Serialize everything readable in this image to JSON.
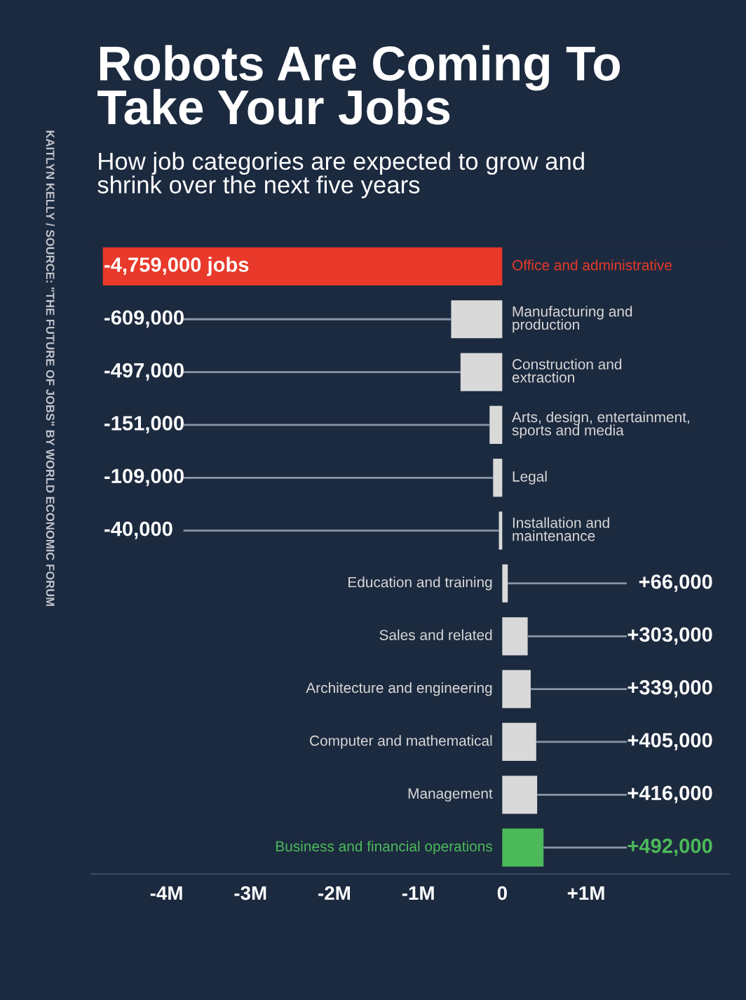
{
  "chart_data": {
    "type": "bar",
    "orientation": "horizontal",
    "title": "Robots Are Coming To\nTake Your Jobs",
    "subtitle": "How job categories are expected to grow and\nshrink over the next five years",
    "annotations": [
      "KAITLYN KELLY / SOURCE: \"THE FUTURE OF JOBS\" BY WORLD ECONOMIC FORUM"
    ],
    "categories": [
      "Office and administrative",
      "Manufacturing and\nproduction",
      "Construction and\nextraction",
      "Arts, design, entertainment,\nsports and media",
      "Legal",
      "Installation and\nmaintenance",
      "Education and training",
      "Sales and related",
      "Architecture and engineering",
      "Computer and mathematical",
      "Management",
      "Business and financial operations"
    ],
    "values": [
      -4759000,
      -609000,
      -497000,
      -151000,
      -109000,
      -40000,
      66000,
      303000,
      339000,
      405000,
      416000,
      492000
    ],
    "colors": [
      "#e8392a",
      "#d9d9d9",
      "#d9d9d9",
      "#d9d9d9",
      "#d9d9d9",
      "#d9d9d9",
      "#d9d9d9",
      "#d9d9d9",
      "#d9d9d9",
      "#d9d9d9",
      "#d9d9d9",
      "#4cba5a"
    ],
    "value_labels": [
      "-4,759,000 jobs",
      "-609,000",
      "-497,000",
      "-151,000",
      "-109,000",
      "-40,000",
      "+66,000",
      "+303,000",
      "+339,000",
      "+405,000",
      "+416,000",
      "+492,000"
    ],
    "xlim": [
      -4900000,
      2700000
    ],
    "xticks": [
      {
        "value": -4000000,
        "label": "-4M"
      },
      {
        "value": -3000000,
        "label": "-3M"
      },
      {
        "value": -2000000,
        "label": "-2M"
      },
      {
        "value": -1000000,
        "label": "-1M"
      },
      0,
      {
        "value": 1000000,
        "label": "+1M"
      }
    ],
    "grid": false,
    "legend": false
  }
}
